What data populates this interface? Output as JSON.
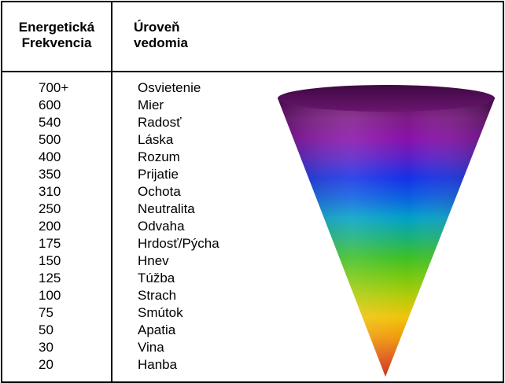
{
  "table": {
    "header_frequency": [
      "Energetická",
      "Frekvencia"
    ],
    "header_level": [
      "Úroveň",
      "vedomia"
    ],
    "rows": [
      {
        "frequency": "700+",
        "level": "Osvietenie"
      },
      {
        "frequency": "600",
        "level": "Mier"
      },
      {
        "frequency": "540",
        "level": "Radosť"
      },
      {
        "frequency": "500",
        "level": "Láska"
      },
      {
        "frequency": "400",
        "level": "Rozum"
      },
      {
        "frequency": "350",
        "level": "Prijatie"
      },
      {
        "frequency": "310",
        "level": "Ochota"
      },
      {
        "frequency": "250",
        "level": "Neutralita"
      },
      {
        "frequency": "200",
        "level": "Odvaha"
      },
      {
        "frequency": "175",
        "level": "Hrdosť/Pýcha"
      },
      {
        "frequency": "150",
        "level": "Hnev"
      },
      {
        "frequency": "125",
        "level": "Túžba"
      },
      {
        "frequency": "100",
        "level": "Strach"
      },
      {
        "frequency": "75",
        "level": "Smútok"
      },
      {
        "frequency": "50",
        "level": "Apatia"
      },
      {
        "frequency": "30",
        "level": "Vina"
      },
      {
        "frequency": "20",
        "level": "Hanba"
      }
    ]
  },
  "cone": {
    "icon": "rainbow-cone-icon",
    "colors": [
      "#5a0a5e",
      "#7d1a86",
      "#8a10a8",
      "#5a1fc8",
      "#1430e6",
      "#0a5fe0",
      "#00a0c8",
      "#18b07a",
      "#3cbf26",
      "#78c80e",
      "#b4cc08",
      "#f0c40a",
      "#f09a0a",
      "#e0601a",
      "#c82a12"
    ]
  }
}
